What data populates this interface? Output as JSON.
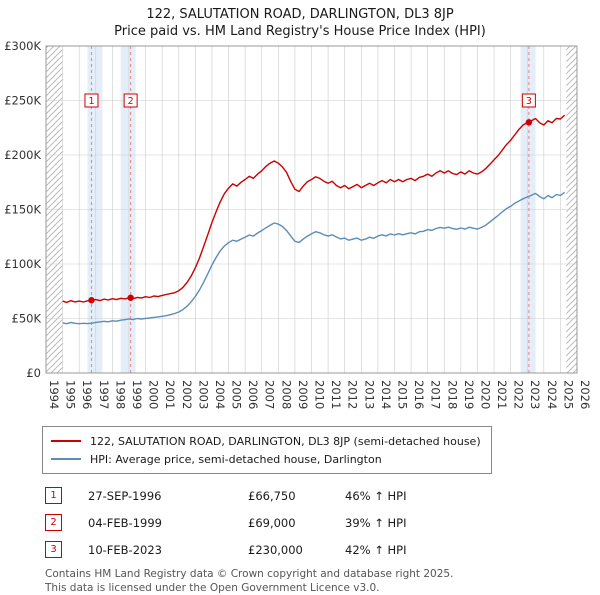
{
  "title": "122, SALUTATION ROAD, DARLINGTON, DL3 8JP",
  "subtitle": "Price paid vs. HM Land Registry's House Price Index (HPI)",
  "colors": {
    "price_paid": "#cc0000",
    "hpi": "#5b8db8",
    "band": "#e4eef9",
    "grid": "#cccccc",
    "plot_border": "#999999",
    "hatch": "#bbbbbb",
    "sale_line": "#dd8888",
    "tick_text": "#333333"
  },
  "chart_data": {
    "type": "line",
    "title": "122, SALUTATION ROAD, DARLINGTON, DL3 8JP",
    "subtitle": "Price paid vs. HM Land Registry's House Price Index (HPI)",
    "xlabel": "",
    "ylabel": "",
    "unit": "GBP thousands",
    "xlim": [
      1994,
      2026
    ],
    "ylim": [
      0,
      300
    ],
    "grid": true,
    "yticks": [
      {
        "v": 0,
        "label": "£0"
      },
      {
        "v": 50,
        "label": "£50K"
      },
      {
        "v": 100,
        "label": "£100K"
      },
      {
        "v": 150,
        "label": "£150K"
      },
      {
        "v": 200,
        "label": "£200K"
      },
      {
        "v": 250,
        "label": "£250K"
      },
      {
        "v": 300,
        "label": "£300K"
      }
    ],
    "xticks": [
      1994,
      1995,
      1996,
      1997,
      1998,
      1999,
      2000,
      2001,
      2002,
      2003,
      2004,
      2005,
      2006,
      2007,
      2008,
      2009,
      2010,
      2011,
      2012,
      2013,
      2014,
      2015,
      2016,
      2017,
      2018,
      2019,
      2020,
      2021,
      2022,
      2023,
      2024,
      2025,
      2026
    ],
    "hatch_regions": [
      [
        1994,
        1995.0
      ],
      [
        2025.35,
        2026
      ]
    ],
    "highlight_bands": [
      [
        1996.5,
        1997.4
      ],
      [
        1998.5,
        1999.4
      ],
      [
        2022.6,
        2023.5
      ]
    ],
    "x": [
      1995,
      1995.25,
      1995.5,
      1995.75,
      1996,
      1996.25,
      1996.5,
      1996.75,
      1997,
      1997.25,
      1997.5,
      1997.75,
      1998,
      1998.25,
      1998.5,
      1998.75,
      1999,
      1999.25,
      1999.5,
      1999.75,
      2000,
      2000.25,
      2000.5,
      2000.75,
      2001,
      2001.25,
      2001.5,
      2001.75,
      2002,
      2002.25,
      2002.5,
      2002.75,
      2003,
      2003.25,
      2003.5,
      2003.75,
      2004,
      2004.25,
      2004.5,
      2004.75,
      2005,
      2005.25,
      2005.5,
      2005.75,
      2006,
      2006.25,
      2006.5,
      2006.75,
      2007,
      2007.25,
      2007.5,
      2007.75,
      2008,
      2008.25,
      2008.5,
      2008.75,
      2009,
      2009.25,
      2009.5,
      2009.75,
      2010,
      2010.25,
      2010.5,
      2010.75,
      2011,
      2011.25,
      2011.5,
      2011.75,
      2012,
      2012.25,
      2012.5,
      2012.75,
      2013,
      2013.25,
      2013.5,
      2013.75,
      2014,
      2014.25,
      2014.5,
      2014.75,
      2015,
      2015.25,
      2015.5,
      2015.75,
      2016,
      2016.25,
      2016.5,
      2016.75,
      2017,
      2017.25,
      2017.5,
      2017.75,
      2018,
      2018.25,
      2018.5,
      2018.75,
      2019,
      2019.25,
      2019.5,
      2019.75,
      2020,
      2020.25,
      2020.5,
      2020.75,
      2021,
      2021.25,
      2021.5,
      2021.75,
      2022,
      2022.25,
      2022.5,
      2022.75,
      2023,
      2023.25,
      2023.5,
      2023.75,
      2024,
      2024.25,
      2024.5,
      2024.75,
      2025,
      2025.25
    ],
    "series": [
      {
        "name": "122, SALUTATION ROAD, DARLINGTON, DL3 8JP (semi-detached house)",
        "color_key": "price_paid",
        "values": [
          66,
          64.8,
          66.3,
          65.2,
          66,
          65.1,
          66.2,
          66.8,
          67.3,
          66.4,
          67.8,
          67,
          68.2,
          67.3,
          68.5,
          68,
          69,
          68.2,
          69.4,
          68.8,
          70,
          69.3,
          70.6,
          70.1,
          71.2,
          72,
          72.8,
          73.6,
          75.5,
          78.5,
          83,
          89,
          96.5,
          105.5,
          116,
          127,
          138,
          148,
          157,
          164.5,
          169.5,
          173.5,
          171.5,
          175,
          177.5,
          180.5,
          178.5,
          182.5,
          185.5,
          189.5,
          192.5,
          194.5,
          192.5,
          189,
          184,
          175.5,
          168.5,
          166.5,
          171.5,
          175.5,
          177.5,
          180,
          178.5,
          176,
          174,
          176,
          172,
          170,
          172,
          169,
          171,
          173,
          170,
          172,
          174,
          172,
          174.5,
          176.5,
          174.5,
          177.5,
          175.5,
          177.5,
          175.5,
          177.5,
          178.5,
          176.5,
          179.5,
          180.5,
          182.5,
          180.5,
          183.5,
          185.5,
          183.5,
          185.5,
          183,
          182,
          184.5,
          182.5,
          185.5,
          183.5,
          182.5,
          184.5,
          187.5,
          191.5,
          195.5,
          199.5,
          204.5,
          209.5,
          213.5,
          218.5,
          223.5,
          227.5,
          229.5,
          231.5,
          233.5,
          229.5,
          227.5,
          231.5,
          229.5,
          233.5,
          233,
          236.5
        ]
      },
      {
        "name": "HPI: Average price, semi-detached house, Darlington",
        "color_key": "hpi",
        "values": [
          46,
          45.2,
          46.4,
          45.6,
          45.2,
          45.6,
          45.3,
          45.7,
          46.4,
          46.9,
          47.4,
          47,
          47.9,
          47.5,
          48.4,
          48.9,
          49.6,
          49,
          50,
          49.5,
          50.1,
          50.5,
          51,
          51.5,
          52,
          52.6,
          53.5,
          54.6,
          56,
          58.2,
          61.2,
          65.3,
          70.2,
          76.2,
          83.2,
          91,
          99,
          106,
          112,
          116.5,
          119.5,
          121.8,
          120.8,
          122.8,
          124.6,
          126.6,
          125.6,
          128.4,
          130.6,
          133.2,
          135.4,
          137.6,
          136.6,
          134.4,
          130.6,
          125.6,
          120.8,
          119.8,
          122.8,
          125.6,
          127.6,
          129.6,
          128.6,
          126.8,
          125.6,
          126.8,
          124.8,
          123,
          123.8,
          121.8,
          122.8,
          123.8,
          121.8,
          122.8,
          124.6,
          123.6,
          125.6,
          126.8,
          125.8,
          127.6,
          126.6,
          127.8,
          126.8,
          127.8,
          128.6,
          127.6,
          129.6,
          130,
          131.6,
          130.8,
          132.6,
          133.6,
          132.8,
          133.8,
          132.6,
          131.8,
          133,
          132,
          133.8,
          132.8,
          132,
          133.6,
          135.6,
          138.6,
          141.6,
          144.6,
          147.8,
          150.8,
          152.8,
          155.8,
          157.8,
          159.8,
          161.5,
          163,
          164.8,
          161.8,
          159.8,
          162.8,
          160.8,
          163.8,
          162.8,
          165.8
        ]
      }
    ],
    "sales": [
      {
        "n": "1",
        "x": 1996.74,
        "y": 66.75
      },
      {
        "n": "2",
        "x": 1999.1,
        "y": 69
      },
      {
        "n": "3",
        "x": 2023.1,
        "y": 230
      }
    ],
    "sale_marker_level": 250
  },
  "legend": {
    "items": [
      {
        "label": "122, SALUTATION ROAD, DARLINGTON, DL3 8JP (semi-detached house)",
        "color_key": "price_paid"
      },
      {
        "label": "HPI: Average price, semi-detached house, Darlington",
        "color_key": "hpi"
      }
    ]
  },
  "transactions": [
    {
      "num": "1",
      "date": "27-SEP-1996",
      "price": "£66,750",
      "hpi": "46% ↑ HPI"
    },
    {
      "num": "2",
      "date": "04-FEB-1999",
      "price": "£69,000",
      "hpi": "39% ↑ HPI"
    },
    {
      "num": "3",
      "date": "10-FEB-2023",
      "price": "£230,000",
      "hpi": "42% ↑ HPI"
    }
  ],
  "footer": {
    "line1": "Contains HM Land Registry data © Crown copyright and database right 2025.",
    "line2": "This data is licensed under the Open Government Licence v3.0."
  }
}
